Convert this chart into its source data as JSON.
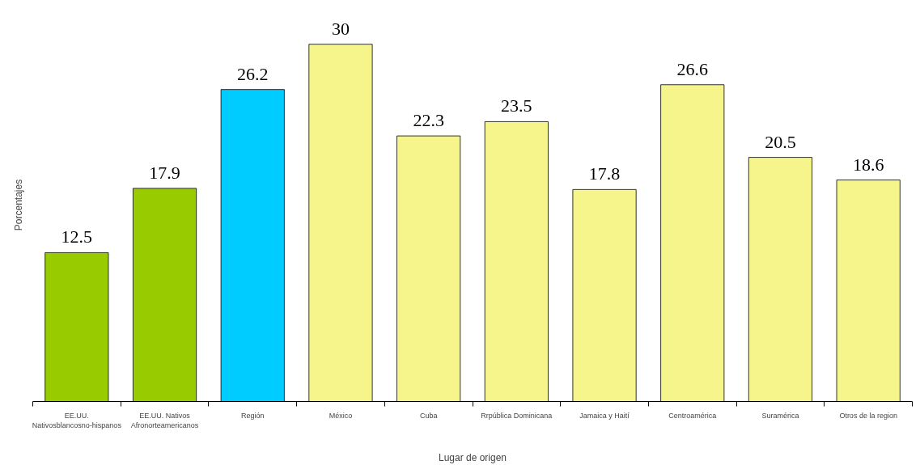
{
  "chart_data": {
    "type": "bar",
    "xlabel": "Lugar de origen",
    "ylabel": "Porcentajes",
    "categories": [
      "EE.UU. Nativosblancosno-hispanos",
      "EE.UU. Nativos Afronorteamericanos",
      "Región",
      "México",
      "Cuba",
      "Rrpública Dominicana",
      "Jamaica y Haití",
      "Centroamérica",
      "Suramérica",
      "Otros de la region"
    ],
    "values": [
      12.5,
      17.9,
      26.2,
      30,
      22.3,
      23.5,
      17.8,
      26.6,
      20.5,
      18.6
    ],
    "colors": [
      "#99cc00",
      "#99cc00",
      "#00ccff",
      "#f5f58c",
      "#f5f58c",
      "#f5f58c",
      "#f5f58c",
      "#f5f58c",
      "#f5f58c",
      "#f5f58c"
    ],
    "data_labels": true,
    "grid": false
  }
}
